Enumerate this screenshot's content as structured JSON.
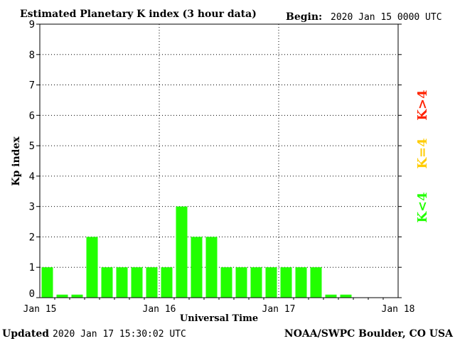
{
  "header": {
    "title": "Estimated Planetary K index (3 hour data)",
    "begin_label": "Begin:",
    "begin_value": "2020 Jan 15 0000 UTC"
  },
  "footer": {
    "updated_label": "Updated",
    "updated_value": "2020 Jan 17 15:30:02 UTC",
    "credit": "NOAA/SWPC Boulder, CO USA"
  },
  "legend": {
    "high": "K>4",
    "mid": "K=4",
    "low": "K<4"
  },
  "colors": {
    "low": "#22ff00",
    "mid": "#ffcc00",
    "high": "#ff2200",
    "frame": "#000000"
  },
  "chart_data": {
    "type": "bar",
    "xlabel": "Universal Time",
    "ylabel": "Kp index",
    "ylim": [
      0,
      9
    ],
    "yticks": [
      "0",
      "1",
      "2",
      "3",
      "4",
      "5",
      "6",
      "7",
      "8",
      "9"
    ],
    "xlim_days": [
      0,
      3
    ],
    "xticks": [
      "Jan 15",
      "Jan 16",
      "Jan 17",
      "Jan 18"
    ],
    "grid": true,
    "bin_hours": 3,
    "values": [
      1,
      0.1,
      0.1,
      2,
      1,
      1,
      1,
      1,
      1,
      3,
      2,
      2,
      1,
      1,
      1,
      1,
      1,
      1,
      1,
      0.1,
      0.1
    ]
  }
}
